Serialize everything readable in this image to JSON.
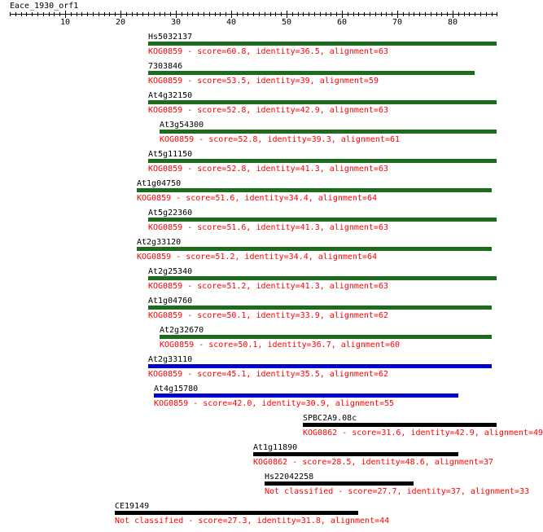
{
  "query": {
    "name": "Eace_1930_orf1",
    "length": 88
  },
  "axis": {
    "ticks": [
      10,
      20,
      30,
      40,
      50,
      60,
      70,
      80
    ]
  },
  "colors": {
    "green": "#1d6b1d",
    "blue": "#0000cc",
    "black": "#000000",
    "label": "#000000",
    "desc": "#ff0000"
  },
  "hits": [
    {
      "name": "Hs5032137",
      "desc": "KOG0859 - score=60.8, identity=36.5, alignment=63",
      "start": 25,
      "end": 88,
      "color": "green"
    },
    {
      "name": "7303846",
      "desc": "KOG0859 - score=53.5, identity=39, alignment=59",
      "start": 25,
      "end": 84,
      "color": "green"
    },
    {
      "name": "At4g32150",
      "desc": "KOG0859 - score=52.8, identity=42.9, alignment=63",
      "start": 25,
      "end": 88,
      "color": "green"
    },
    {
      "name": "At3g54300",
      "desc": "KOG0859 - score=52.8, identity=39.3, alignment=61",
      "start": 27,
      "end": 88,
      "color": "green"
    },
    {
      "name": "At5g11150",
      "desc": "KOG0859 - score=52.8, identity=41.3, alignment=63",
      "start": 25,
      "end": 88,
      "color": "green"
    },
    {
      "name": "At1g04750",
      "desc": "KOG0859 - score=51.6, identity=34.4, alignment=64",
      "start": 23,
      "end": 87,
      "color": "green"
    },
    {
      "name": "At5g22360",
      "desc": "KOG0859 - score=51.6, identity=41.3, alignment=63",
      "start": 25,
      "end": 88,
      "color": "green"
    },
    {
      "name": "At2g33120",
      "desc": "KOG0859 - score=51.2, identity=34.4, alignment=64",
      "start": 23,
      "end": 87,
      "color": "green"
    },
    {
      "name": "At2g25340",
      "desc": "KOG0859 - score=51.2, identity=41.3, alignment=63",
      "start": 25,
      "end": 88,
      "color": "green"
    },
    {
      "name": "At1g04760",
      "desc": "KOG0859 - score=50.1, identity=33.9, alignment=62",
      "start": 25,
      "end": 87,
      "color": "green"
    },
    {
      "name": "At2g32670",
      "desc": "KOG0859 - score=50.1, identity=36.7, alignment=60",
      "start": 27,
      "end": 87,
      "color": "green"
    },
    {
      "name": "At2g33110",
      "desc": "KOG0859 - score=45.1, identity=35.5, alignment=62",
      "start": 25,
      "end": 87,
      "color": "blue"
    },
    {
      "name": "At4g15780",
      "desc": "KOG0859 - score=42.0, identity=30.9, alignment=55",
      "start": 26,
      "end": 81,
      "color": "blue"
    },
    {
      "name": "SPBC2A9.08c",
      "desc": "KOG0862 - score=31.6, identity=42.9, alignment=49",
      "start": 53,
      "end": 88,
      "color": "black"
    },
    {
      "name": "At1g11890",
      "desc": "KOG0862 - score=28.5, identity=48.6, alignment=37",
      "start": 44,
      "end": 81,
      "color": "black"
    },
    {
      "name": "Hs22042258",
      "desc": "Not classified - score=27.7, identity=37, alignment=33",
      "start": 46,
      "end": 73,
      "color": "black"
    },
    {
      "name": "CE19149",
      "desc": "Not classified - score=27.3, identity=31.8, alignment=44",
      "start": 19,
      "end": 63,
      "color": "black"
    }
  ]
}
